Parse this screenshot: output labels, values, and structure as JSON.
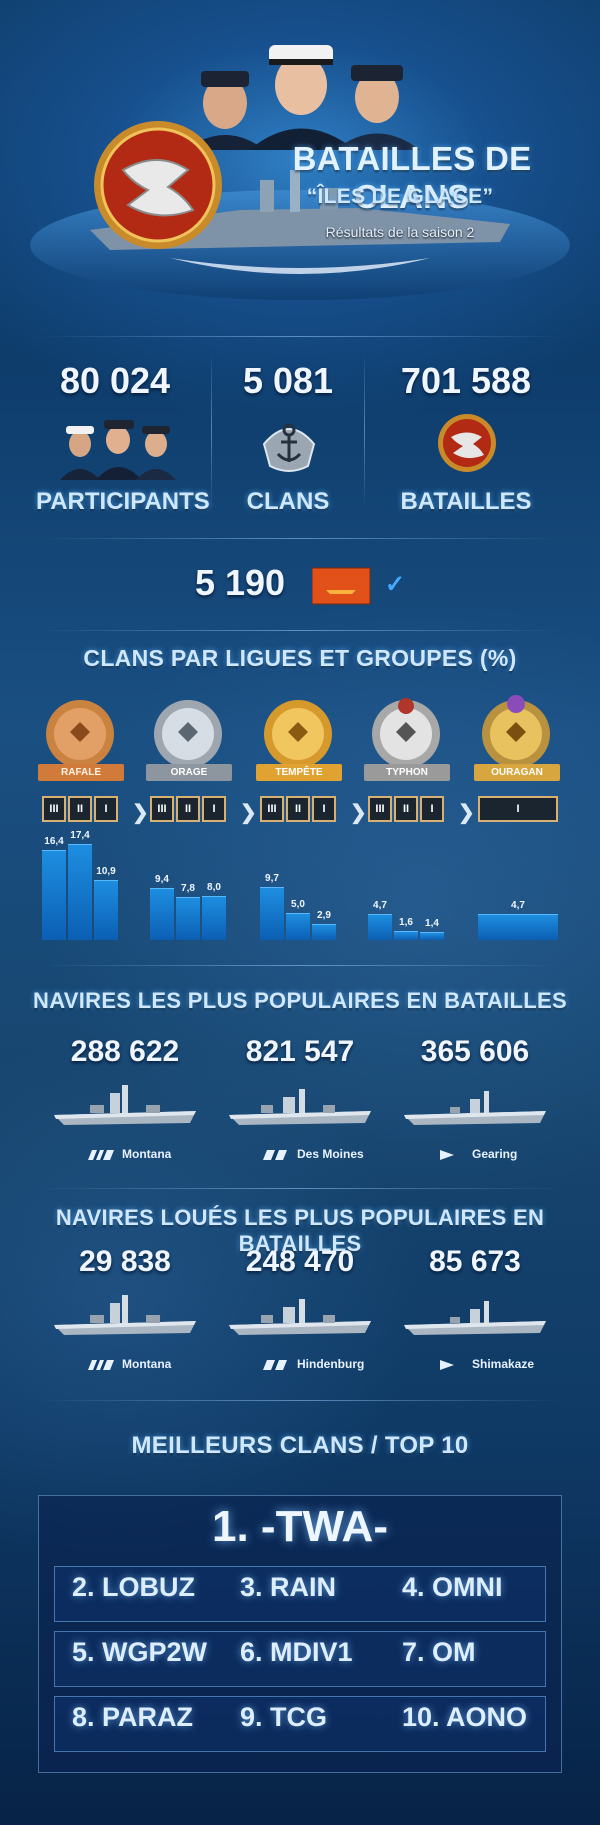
{
  "header": {
    "title": "BATAILLES DE CLANS",
    "subtitle": "“ÎLES DE GLACE”",
    "season": "Résultats de la saison 2"
  },
  "stats": [
    {
      "value": "80 024",
      "label": "PARTICIPANTS"
    },
    {
      "value": "5 081",
      "label": "CLANS"
    },
    {
      "value": "701 588",
      "label": "BATAILLES"
    }
  ],
  "ranked": {
    "value": "5 190"
  },
  "leagues_section": {
    "title": "CLANS PAR LIGUES ET GROUPES (%)",
    "leagues": [
      "RAFALE",
      "ORAGE",
      "TEMPÊTE",
      "TYPHON",
      "OURAGAN"
    ]
  },
  "chart_data": {
    "type": "bar",
    "title": "CLANS PAR LIGUES ET GROUPES (%)",
    "categories": [
      "RAFALE III",
      "RAFALE II",
      "RAFALE I",
      "ORAGE III",
      "ORAGE II",
      "ORAGE I",
      "TEMPÊTE III",
      "TEMPÊTE II",
      "TEMPÊTE I",
      "TYPHON III",
      "TYPHON II",
      "TYPHON I",
      "OURAGAN I"
    ],
    "values": [
      16.4,
      17.4,
      10.9,
      9.4,
      7.8,
      8.0,
      9.7,
      5.0,
      2.9,
      4.7,
      1.6,
      1.4,
      4.7
    ],
    "labels": [
      "16,4",
      "17,4",
      "10,9",
      "9,4",
      "7,8",
      "8,0",
      "9,7",
      "5,0",
      "2,9",
      "4,7",
      "1,6",
      "1,4",
      "4,7"
    ],
    "group_labels": [
      "III",
      "II",
      "I",
      "III",
      "II",
      "I",
      "III",
      "II",
      "I",
      "III",
      "II",
      "I",
      "I"
    ]
  },
  "popular_ships": {
    "title": "NAVIRES LES PLUS POPULAIRES EN BATAILLES",
    "items": [
      {
        "value": "288 622",
        "name": "Montana",
        "class": "battleship-icon"
      },
      {
        "value": "821 547",
        "name": "Des Moines",
        "class": "cruiser-icon"
      },
      {
        "value": "365 606",
        "name": "Gearing",
        "class": "destroyer-icon"
      }
    ]
  },
  "rented_ships": {
    "title": "NAVIRES LOUÉS LES PLUS POPULAIRES EN BATAILLES",
    "items": [
      {
        "value": "29 838",
        "name": "Montana",
        "class": "battleship-icon"
      },
      {
        "value": "248 470",
        "name": "Hindenburg",
        "class": "cruiser-icon"
      },
      {
        "value": "85 673",
        "name": "Shimakaze",
        "class": "destroyer-icon"
      }
    ]
  },
  "top_clans": {
    "title": "MEILLEURS CLANS / TOP 10",
    "first": "1. -TWA-",
    "rows": [
      [
        "2. LOBUZ",
        "3. RAIN",
        "4. OMNI"
      ],
      [
        "5. WGP2W",
        "6. MDIV1",
        "7. OM"
      ],
      [
        "8. PARAZ",
        "9. TCG",
        "10. AONO"
      ]
    ]
  },
  "colors": {
    "bronze": "#c9823f",
    "silver": "#b9c0c8",
    "gold": "#e0a73a",
    "platinum": "#c9c9c9",
    "hurricane": "#c8a24a",
    "bar": "#1e8ee0"
  }
}
